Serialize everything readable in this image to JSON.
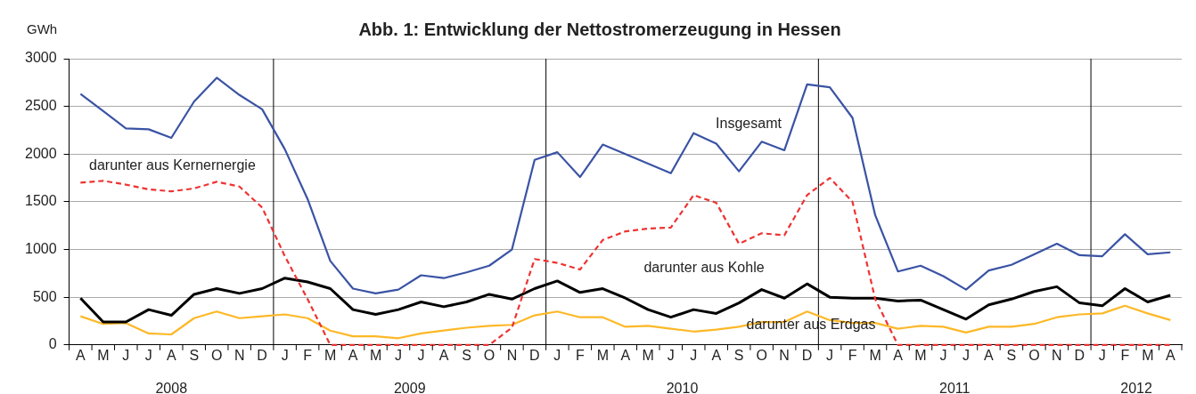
{
  "chart_data": {
    "type": "line",
    "title": "Abb. 1: Entwicklung der Nettostromerzeugung in Hessen",
    "ylabel": "GWh",
    "categories": [
      "A",
      "M",
      "J",
      "J",
      "A",
      "S",
      "O",
      "N",
      "D",
      "J",
      "F",
      "M",
      "A",
      "M",
      "J",
      "J",
      "A",
      "S",
      "O",
      "N",
      "D",
      "J",
      "F",
      "M",
      "A",
      "M",
      "J",
      "J",
      "A",
      "S",
      "O",
      "N",
      "D",
      "J",
      "F",
      "M",
      "A",
      "M",
      "J",
      "J",
      "A",
      "S",
      "O",
      "N",
      "D",
      "J",
      "F",
      "M",
      "A"
    ],
    "ylim": [
      0,
      3000
    ],
    "yticks": [
      0,
      500,
      1000,
      1500,
      2000,
      2500,
      3000
    ],
    "grid": "y",
    "legend": false,
    "marker": "none",
    "annotations": [
      "2008",
      "2009",
      "2010",
      "2011",
      "2012"
    ],
    "series": [
      {
        "name": "Insgesamt",
        "color": "#3a53a4",
        "line_style": "solid",
        "values": [
          2630,
          2450,
          2270,
          2260,
          2170,
          2550,
          2800,
          2620,
          2470,
          2050,
          1530,
          880,
          590,
          540,
          580,
          730,
          700,
          760,
          830,
          1000,
          1940,
          2020,
          1760,
          2100,
          2000,
          1900,
          1800,
          2220,
          2110,
          1820,
          2130,
          2040,
          2730,
          2700,
          2380,
          1360,
          770,
          830,
          720,
          580,
          780,
          840,
          950,
          1060,
          940,
          930,
          1160,
          950,
          970
        ]
      },
      {
        "name": "darunter aus Kernernergie",
        "color": "#ee3333",
        "line_style": "dashed",
        "values": [
          1700,
          1720,
          1680,
          1630,
          1610,
          1640,
          1710,
          1660,
          1440,
          930,
          480,
          0,
          0,
          0,
          0,
          0,
          0,
          0,
          0,
          180,
          900,
          860,
          790,
          1100,
          1190,
          1220,
          1230,
          1570,
          1490,
          1060,
          1170,
          1150,
          1570,
          1750,
          1500,
          480,
          0,
          0,
          0,
          0,
          0,
          0,
          0,
          0,
          0,
          0,
          0,
          0,
          0
        ]
      },
      {
        "name": "darunter aus Kohle",
        "color": "#000000",
        "line_style": "solid",
        "values": [
          490,
          240,
          240,
          370,
          310,
          530,
          590,
          540,
          590,
          700,
          660,
          590,
          370,
          320,
          370,
          450,
          400,
          450,
          530,
          480,
          590,
          670,
          550,
          590,
          490,
          370,
          290,
          370,
          330,
          440,
          580,
          490,
          640,
          500,
          490,
          490,
          460,
          470,
          370,
          270,
          420,
          480,
          560,
          610,
          440,
          410,
          590,
          450,
          520
        ]
      },
      {
        "name": "darunter aus Erdgas",
        "color": "#fdb827",
        "line_style": "solid",
        "values": [
          300,
          220,
          230,
          120,
          110,
          280,
          350,
          280,
          300,
          320,
          280,
          150,
          90,
          90,
          70,
          120,
          150,
          180,
          200,
          210,
          310,
          350,
          290,
          290,
          190,
          200,
          170,
          140,
          160,
          190,
          240,
          240,
          350,
          260,
          230,
          230,
          170,
          200,
          190,
          130,
          190,
          190,
          220,
          290,
          320,
          330,
          410,
          330,
          260
        ]
      }
    ]
  }
}
